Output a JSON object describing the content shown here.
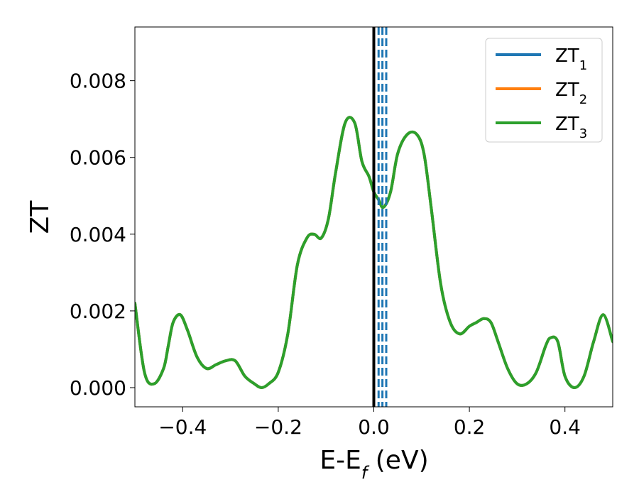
{
  "chart_data": {
    "type": "line",
    "xlabel_main": "E-E",
    "xlabel_sub": "f",
    "xlabel_unit": " (eV)",
    "ylabel": "ZT",
    "xlim": [
      -0.5,
      0.5
    ],
    "ylim": [
      -0.0005,
      0.0094
    ],
    "xticks": [
      -0.4,
      -0.2,
      0.0,
      0.2,
      0.4
    ],
    "xtick_labels": [
      "−0.4",
      "−0.2",
      "0.0",
      "0.2",
      "0.4"
    ],
    "yticks": [
      0.0,
      0.002,
      0.004,
      0.006,
      0.008
    ],
    "ytick_labels": [
      "0.000",
      "0.002",
      "0.004",
      "0.006",
      "0.008"
    ],
    "grid": false,
    "legend_position": "top-right",
    "fermi_line_x": 0.0,
    "dashed_lines_x": [
      0.01,
      0.018,
      0.026
    ],
    "series": [
      {
        "name": "ZT",
        "sub": "1",
        "color": "#1f77b4"
      },
      {
        "name": "ZT",
        "sub": "2",
        "color": "#ff7f0e"
      },
      {
        "name": "ZT",
        "sub": "3",
        "color": "#2ca02c"
      }
    ],
    "x": [
      -0.5,
      -0.48,
      -0.46,
      -0.44,
      -0.43,
      -0.42,
      -0.405,
      -0.39,
      -0.37,
      -0.35,
      -0.33,
      -0.31,
      -0.29,
      -0.27,
      -0.25,
      -0.235,
      -0.22,
      -0.2,
      -0.18,
      -0.16,
      -0.14,
      -0.125,
      -0.11,
      -0.095,
      -0.08,
      -0.06,
      -0.04,
      -0.025,
      -0.01,
      0.0,
      0.01,
      0.02,
      0.035,
      0.05,
      0.07,
      0.09,
      0.105,
      0.12,
      0.14,
      0.16,
      0.18,
      0.2,
      0.215,
      0.23,
      0.245,
      0.26,
      0.28,
      0.3,
      0.32,
      0.34,
      0.36,
      0.37,
      0.385,
      0.4,
      0.42,
      0.44,
      0.46,
      0.48,
      0.5
    ],
    "y": [
      0.0022,
      0.0004,
      0.0001,
      0.0005,
      0.0011,
      0.0017,
      0.0019,
      0.0015,
      0.0008,
      0.0005,
      0.0006,
      0.0007,
      0.0007,
      0.0003,
      0.0001,
      0.0,
      0.0001,
      0.0004,
      0.0014,
      0.0032,
      0.0039,
      0.004,
      0.0039,
      0.0044,
      0.0056,
      0.0069,
      0.0069,
      0.0059,
      0.0055,
      0.0051,
      0.0049,
      0.0047,
      0.0051,
      0.0061,
      0.0066,
      0.0066,
      0.0061,
      0.0047,
      0.0027,
      0.0017,
      0.0014,
      0.0016,
      0.0017,
      0.0018,
      0.0017,
      0.0012,
      0.0005,
      0.0001,
      0.0001,
      0.0004,
      0.0011,
      0.0013,
      0.0012,
      0.0003,
      0.0,
      0.0003,
      0.0012,
      0.0019,
      0.0012
    ]
  }
}
